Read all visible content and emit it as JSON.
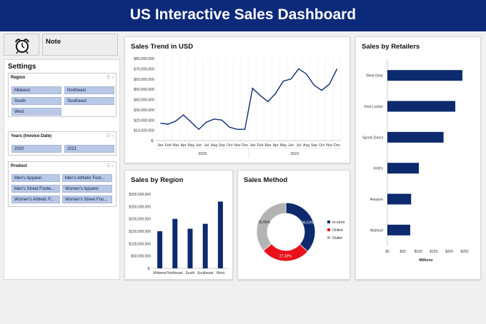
{
  "header": {
    "title": "US Interactive Sales Dashboard"
  },
  "note": {
    "label": "Note"
  },
  "settings": {
    "title": "Settings",
    "region": {
      "label": "Region",
      "options": [
        "Midwest",
        "Northeast",
        "South",
        "Southeast",
        "West"
      ]
    },
    "years": {
      "label": "Years (Invoice Date)",
      "options": [
        "2020",
        "2021"
      ]
    },
    "product": {
      "label": "Product",
      "options": [
        "Men's Apparel",
        "Men's Athletic Foot...",
        "Men's Street Footw...",
        "Women's Apparel",
        "Women's Athletic F...",
        "Women's Street Foo..."
      ]
    }
  },
  "sales_trend": {
    "title": "Sales Trend in USD",
    "chart_data": {
      "type": "line",
      "title": "Sales Trend in USD",
      "months": [
        "Jan",
        "Feb",
        "Mar",
        "Apr",
        "May",
        "Jun",
        "Jul",
        "Aug",
        "Sep",
        "Oct",
        "Nov",
        "Dec",
        "Jan",
        "Feb",
        "Mar",
        "Apr",
        "May",
        "Jun",
        "Jul",
        "Aug",
        "Sep",
        "Oct",
        "Nov",
        "Dec"
      ],
      "years": [
        "2020",
        "2021"
      ],
      "yticks": [
        "$-",
        "$10,000,000",
        "$20,000,000",
        "$30,000,000",
        "$40,000,000",
        "$50,000,000",
        "$60,000,000",
        "$70,000,000",
        "$80,000,000"
      ],
      "ylim": [
        0,
        80000000
      ],
      "values": [
        17000000,
        16000000,
        19000000,
        25000000,
        18000000,
        11000000,
        18000000,
        21000000,
        20000000,
        13000000,
        11000000,
        11000000,
        51000000,
        44000000,
        38000000,
        46000000,
        58000000,
        60000000,
        70000000,
        65000000,
        54000000,
        49000000,
        55000000,
        70000000
      ],
      "color": "#0d2a6e"
    }
  },
  "sales_region": {
    "title": "Sales by Region",
    "chart_data": {
      "type": "bar",
      "title": "Sales by Region",
      "categories": [
        "Midwest",
        "Northeast",
        "South",
        "Southeast",
        "West"
      ],
      "values": [
        150000000,
        200000000,
        160000000,
        180000000,
        270000000
      ],
      "ylim": [
        0,
        300000000
      ],
      "yticks": [
        "$-",
        "$50,000,000",
        "$100,000,000",
        "$150,000,000",
        "$200,000,000",
        "$250,000,000",
        "$300,000,000"
      ],
      "color": "#0d2a6e"
    }
  },
  "sales_method": {
    "title": "Sales Method",
    "chart_data": {
      "type": "pie",
      "title": "Sales Method",
      "labels": [
        "In-store",
        "Online",
        "Outlet"
      ],
      "values": [
        36.63,
        27.32,
        36.05
      ],
      "value_labels": [
        "36.63%",
        "27.32%",
        "36.05%"
      ],
      "colors": [
        "#0d2a6e",
        "#e8111a",
        "#b3b3b3"
      ]
    }
  },
  "sales_retailers": {
    "title": "Sales by Retailers",
    "chart_data": {
      "type": "bar",
      "orientation": "horizontal",
      "title": "Sales by Retailers",
      "categories": [
        "West Gear",
        "Foot Locker",
        "Sports Direct",
        "Kohl's",
        "Amazon",
        "Walmart"
      ],
      "values": [
        243,
        220,
        182,
        102,
        77,
        74
      ],
      "xlim": [
        0,
        250
      ],
      "xticks": [
        "$0",
        "$50",
        "$100",
        "$150",
        "$200",
        "$250"
      ],
      "xlabel": "Millions",
      "color": "#0d2a6e"
    }
  }
}
